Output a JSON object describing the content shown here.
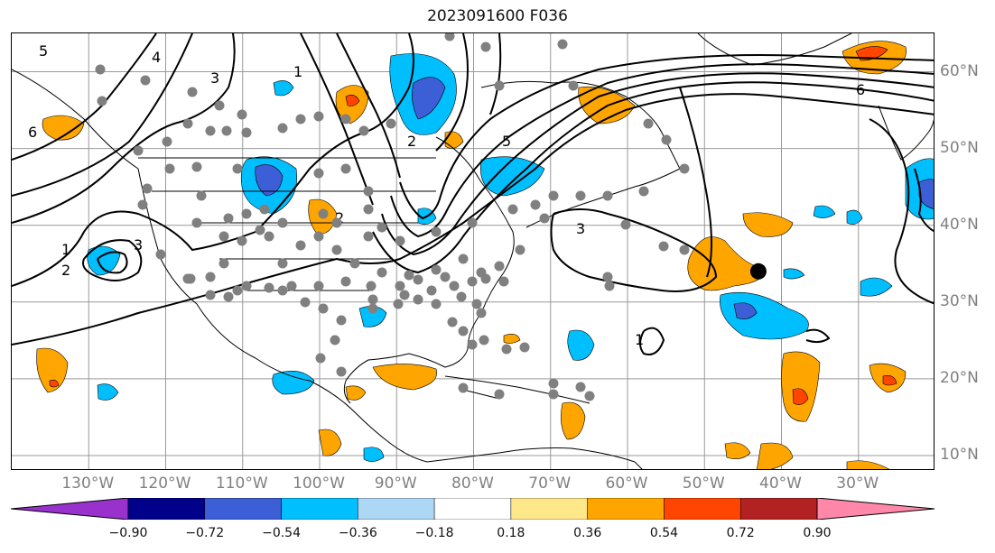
{
  "title": "2023091600 F036",
  "map": {
    "lon_labels": [
      {
        "text": "130°W",
        "lon": -130
      },
      {
        "text": "120°W",
        "lon": -120
      },
      {
        "text": "110°W",
        "lon": -110
      },
      {
        "text": "100°W",
        "lon": -100
      },
      {
        "text": "90°W",
        "lon": -90
      },
      {
        "text": "80°W",
        "lon": -80
      },
      {
        "text": "70°W",
        "lon": -70
      },
      {
        "text": "60°W",
        "lon": -60
      },
      {
        "text": "50°W",
        "lon": -50
      },
      {
        "text": "40°W",
        "lon": -40
      },
      {
        "text": "30°W",
        "lon": -30
      }
    ],
    "lat_labels": [
      {
        "text": "60°N",
        "lat": 60
      },
      {
        "text": "50°N",
        "lat": 50
      },
      {
        "text": "40°N",
        "lat": 40
      },
      {
        "text": "30°N",
        "lat": 30
      },
      {
        "text": "20°N",
        "lat": 20
      },
      {
        "text": "10°N",
        "lat": 10
      }
    ],
    "lon_range": [
      -140,
      -20
    ],
    "lat_range": [
      8,
      65
    ],
    "grid": true,
    "contour_labels": [
      "1",
      "2",
      "3",
      "4",
      "5",
      "6"
    ],
    "marker": {
      "lon": -43,
      "lat": 34
    }
  },
  "colorbar": {
    "tick_labels": [
      "−0.90",
      "−0.72",
      "−0.54",
      "−0.36",
      "−0.18",
      "0.18",
      "0.36",
      "0.54",
      "0.72",
      "0.90"
    ],
    "colors": [
      "#9932cc",
      "#00008b",
      "#3c5fd7",
      "#00bfff",
      "#add8f5",
      "#ffffff",
      "#ffe88a",
      "#ffa500",
      "#ff4500",
      "#b22222",
      "#ff88aa"
    ]
  }
}
